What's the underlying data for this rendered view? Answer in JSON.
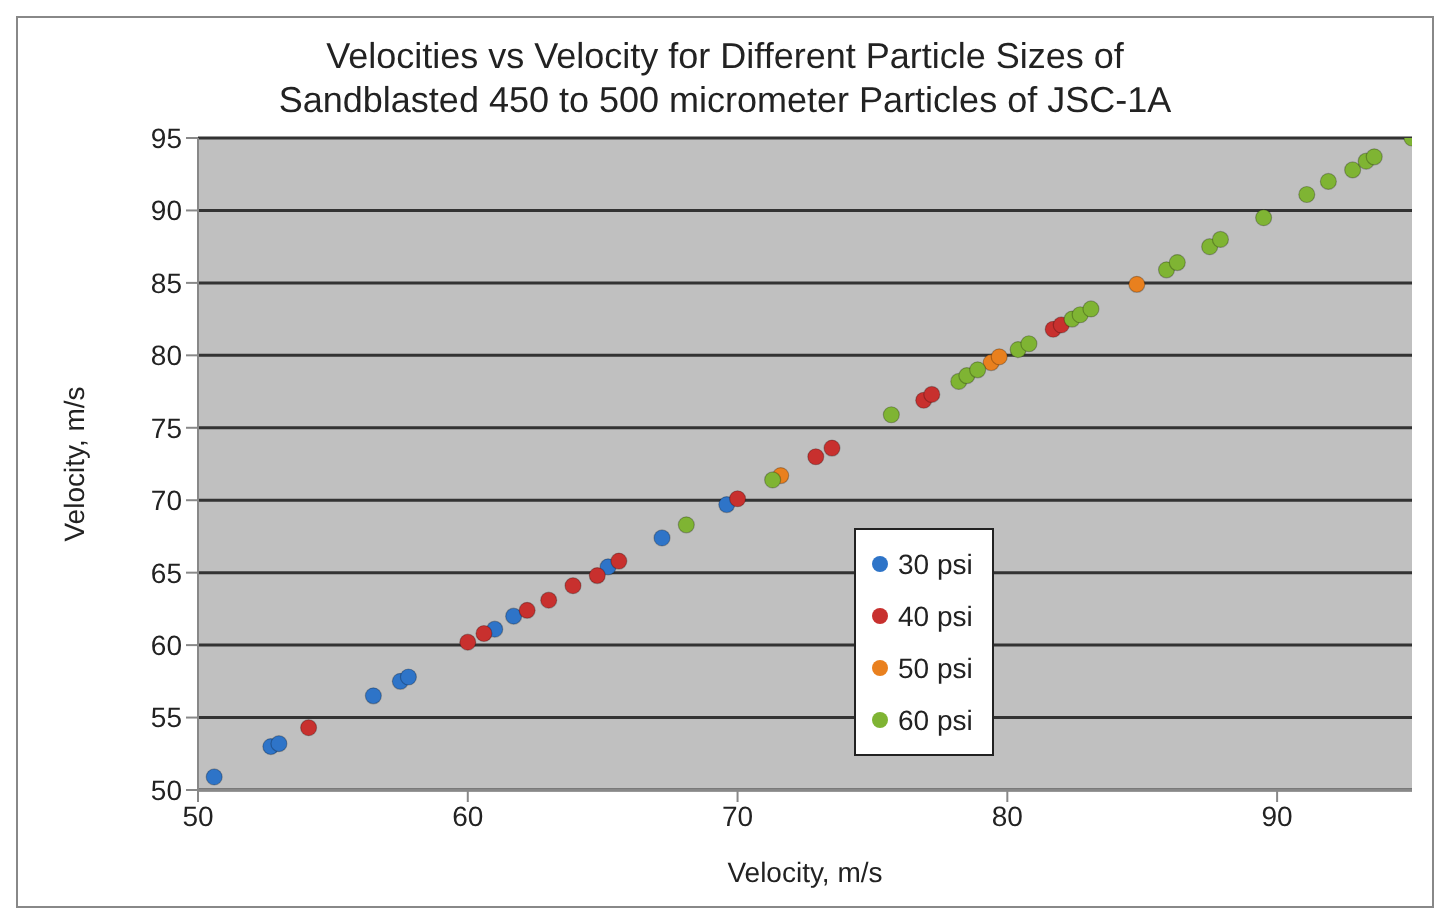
{
  "chart_data": {
    "type": "scatter",
    "title": "Velocities vs Velocity for Different Particle Sizes of Sandblasted 450 to 500 micrometer Particles of JSC-1A",
    "xlabel": "Velocity, m/s",
    "ylabel": "Velocity, m/s",
    "xlim": [
      50,
      95
    ],
    "xticks": [
      50,
      60,
      70,
      80,
      90
    ],
    "ylim": [
      50,
      95
    ],
    "yticks": [
      50,
      55,
      60,
      65,
      70,
      75,
      80,
      85,
      90,
      95
    ],
    "grid": "y",
    "legend": "bottom right",
    "marker": "circle",
    "series": [
      {
        "name": "30 psi",
        "color": "#2e74c8",
        "x": [
          50.6,
          52.7,
          53.0,
          56.5,
          57.5,
          57.8,
          61.0,
          61.7,
          65.2,
          67.2,
          69.6
        ],
        "values": [
          50.9,
          53.0,
          53.2,
          56.5,
          57.5,
          57.8,
          61.1,
          62.0,
          65.4,
          67.4,
          69.7
        ]
      },
      {
        "name": "40 psi",
        "color": "#c8302e",
        "x": [
          54.1,
          60.0,
          60.6,
          62.2,
          63.0,
          63.9,
          64.8,
          65.6,
          70.0,
          72.9,
          73.5,
          76.9,
          77.2,
          81.7,
          82.0
        ],
        "values": [
          54.3,
          60.2,
          60.8,
          62.4,
          63.1,
          64.1,
          64.8,
          65.8,
          70.1,
          73.0,
          73.6,
          76.9,
          77.3,
          81.8,
          82.1
        ]
      },
      {
        "name": "50 psi",
        "color": "#e9801e",
        "x": [
          71.6,
          79.4,
          79.7,
          84.8
        ],
        "values": [
          71.7,
          79.5,
          79.9,
          84.9
        ]
      },
      {
        "name": "60 psi",
        "color": "#7fb433",
        "x": [
          68.1,
          71.3,
          75.7,
          78.2,
          78.5,
          78.9,
          80.4,
          80.8,
          82.4,
          82.7,
          83.1,
          85.9,
          86.3,
          87.5,
          87.9,
          89.5,
          91.1,
          91.9,
          92.8,
          93.3,
          93.6,
          95.0
        ],
        "values": [
          68.3,
          71.4,
          75.9,
          78.2,
          78.6,
          79.0,
          80.4,
          80.8,
          82.5,
          82.8,
          83.2,
          85.9,
          86.4,
          87.5,
          88.0,
          89.5,
          91.1,
          92.0,
          92.8,
          93.4,
          93.7,
          95.0
        ]
      }
    ]
  }
}
